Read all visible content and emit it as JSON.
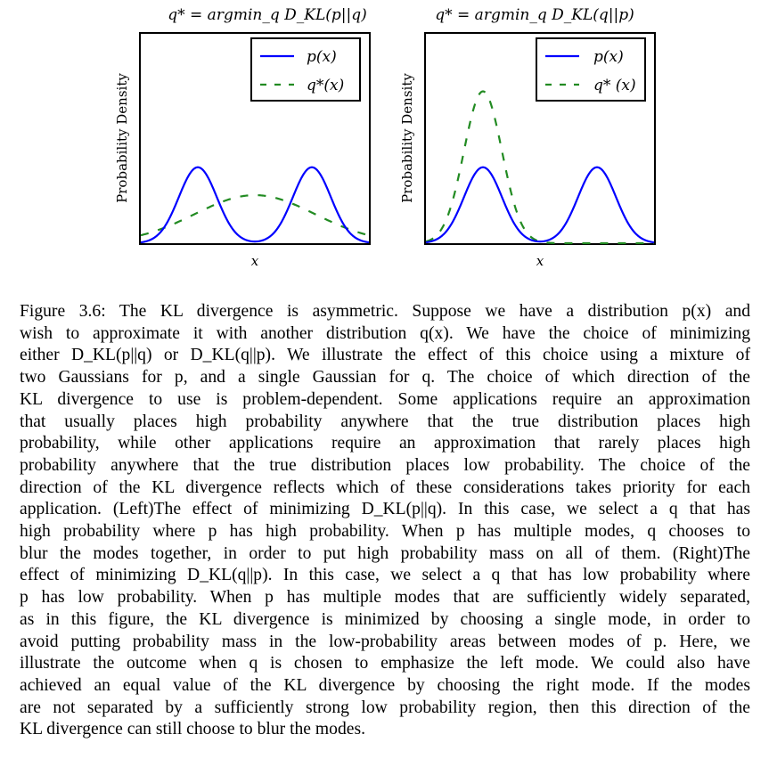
{
  "chart_data": [
    {
      "type": "line",
      "title": "q* = argmin_q D_KL(p||q)",
      "xlabel": "x",
      "ylabel": "Probability Density",
      "xlim": [
        -6,
        6
      ],
      "ylim": [
        0,
        0.55
      ],
      "legend": {
        "placement": "top-right",
        "entries": [
          "p(x)",
          "q*(x)"
        ]
      },
      "series": [
        {
          "name": "p(x)",
          "style": "solid",
          "color": "#0000ff",
          "model": "mixture of two gaussians",
          "means": [
            -3,
            3
          ],
          "sds": [
            1,
            1
          ],
          "weights": [
            0.5,
            0.5
          ]
        },
        {
          "name": "q*(x)",
          "style": "dashed",
          "color": "#228b22",
          "model": "gaussian",
          "mean": 0,
          "sd": 3.16
        }
      ]
    },
    {
      "type": "line",
      "title": "q* = argmin_q D_KL(q||p)",
      "xlabel": "x",
      "ylabel": "Probability Density",
      "xlim": [
        -6,
        6
      ],
      "ylim": [
        0,
        0.55
      ],
      "legend": {
        "placement": "top-right",
        "entries": [
          "p(x)",
          "q* (x)"
        ]
      },
      "series": [
        {
          "name": "p(x)",
          "style": "solid",
          "color": "#0000ff",
          "model": "mixture of two gaussians",
          "means": [
            -3,
            3
          ],
          "sds": [
            1,
            1
          ],
          "weights": [
            0.5,
            0.5
          ]
        },
        {
          "name": "q* (x)",
          "style": "dashed",
          "color": "#228b22",
          "model": "gaussian",
          "mean": -3,
          "sd": 1
        }
      ]
    }
  ],
  "figure": {
    "left_title": "q* = argmin_q D_KL(p||q)",
    "right_title": "q* = argmin_q D_KL(q||p)",
    "ylabel": "Probability Density",
    "xlabel": "x",
    "left_legend": [
      "p(x)",
      "q*(x)"
    ],
    "right_legend": [
      "p(x)",
      "q* (x)"
    ]
  },
  "caption_lines": [
    "Figure 3.6: The KL divergence is asymmetric. Suppose we have a distribution p(x) and",
    "wish to approximate it with another distribution q(x). We have the choice of minimizing",
    "either D_KL(p||q) or D_KL(q||p). We illustrate the effect of this choice using a mixture of",
    "two Gaussians for p, and a single Gaussian for q. The choice of which direction of the",
    "KL divergence to use is problem-dependent. Some applications require an approximation",
    "that usually places high probability anywhere that the true distribution places high",
    "probability, while other applications require an approximation that rarely places high",
    "probability anywhere that the true distribution places low probability. The choice of the",
    "direction of the KL divergence reflects which of these considerations takes priority for each",
    "application. (Left)The effect of minimizing D_KL(p||q). In this case, we select a q that has",
    "high probability where p has high probability. When p has multiple modes, q chooses to",
    "blur the modes together, in order to put high probability mass on all of them. (Right)The",
    "effect of minimizing D_KL(q||p). In this case, we select a q that has low probability where",
    "p has low probability. When p has multiple modes that are sufficiently widely separated,",
    "as in this figure, the KL divergence is minimized by choosing a single mode, in order to",
    "avoid putting probability mass in the low-probability areas between modes of p. Here, we",
    "illustrate the outcome when q is chosen to emphasize the left mode. We could also have",
    "achieved an equal value of the KL divergence by choosing the right mode. If the modes",
    "are not separated by a sufficiently strong low probability region, then this direction of the",
    "KL divergence can still choose to blur the modes."
  ]
}
